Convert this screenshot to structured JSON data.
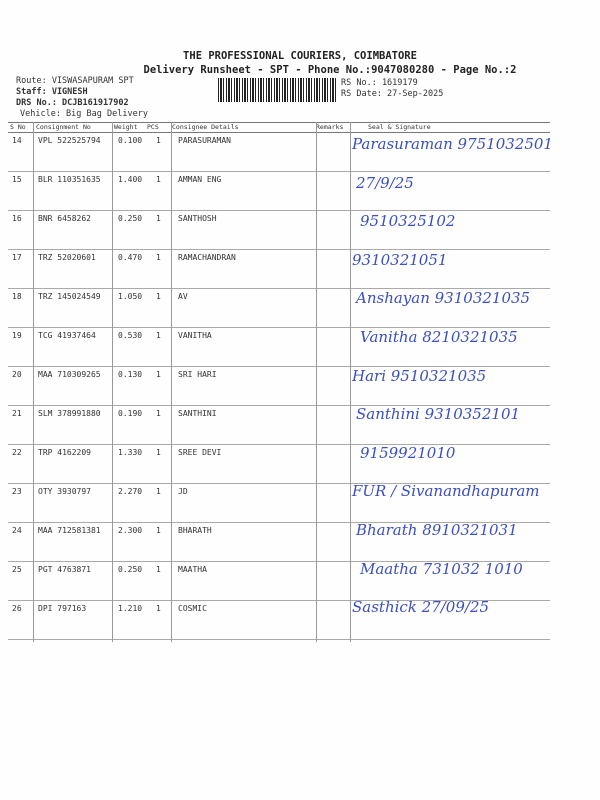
{
  "header": {
    "company": "THE PROFESSIONAL COURIERS, COIMBATORE",
    "subtitle": "Delivery Runsheet - SPT - Phone No.:9047080280 - Page No.:2",
    "route": "Route: VISWASAPURAM SPT",
    "staff": "Staff: VIGNESH",
    "drs": "DRS No.: DCJB161917902",
    "vehicle": "Vehicle: Big Bag Delivery",
    "rs_no": "RS No.: 1619179",
    "rs_date": "RS Date: 27-Sep-2025"
  },
  "columns": [
    "S No",
    "Consignment No",
    "Weight",
    "PCS",
    "Consignee Details",
    "Remarks",
    "Seal & Signature"
  ],
  "rows": [
    {
      "sno": "14",
      "cno": "VPL 522525794",
      "weight": "0.100",
      "pcs": "1",
      "consignee": "PARASURAMAN",
      "signature": "Parasuraman 9751032501"
    },
    {
      "sno": "15",
      "cno": "BLR 110351635",
      "weight": "1.400",
      "pcs": "1",
      "consignee": "AMMAN ENG",
      "signature": "27/9/25"
    },
    {
      "sno": "16",
      "cno": "BNR 6458262",
      "weight": "0.250",
      "pcs": "1",
      "consignee": "SANTHOSH",
      "signature": "9510325102"
    },
    {
      "sno": "17",
      "cno": "TRZ 52020601",
      "weight": "0.470",
      "pcs": "1",
      "consignee": "RAMACHANDRAN",
      "signature": "9310321051"
    },
    {
      "sno": "18",
      "cno": "TRZ 145024549",
      "weight": "1.050",
      "pcs": "1",
      "consignee": "AV",
      "signature": "Anshayan 9310321035"
    },
    {
      "sno": "19",
      "cno": "TCG 41937464",
      "weight": "0.530",
      "pcs": "1",
      "consignee": "VANITHA",
      "signature": "Vanitha 8210321035"
    },
    {
      "sno": "20",
      "cno": "MAA 710309265",
      "weight": "0.130",
      "pcs": "1",
      "consignee": "SRI HARI",
      "signature": "Hari 9510321035"
    },
    {
      "sno": "21",
      "cno": "SLM 378991880",
      "weight": "0.190",
      "pcs": "1",
      "consignee": "SANTHINI",
      "signature": "Santhini 9310352101"
    },
    {
      "sno": "22",
      "cno": "TRP 4162209",
      "weight": "1.330",
      "pcs": "1",
      "consignee": "SREE DEVI",
      "signature": "9159921010"
    },
    {
      "sno": "23",
      "cno": "OTY 3930797",
      "weight": "2.270",
      "pcs": "1",
      "consignee": "JD",
      "signature": "FUR / Sivanandhapuram"
    },
    {
      "sno": "24",
      "cno": "MAA 712581381",
      "weight": "2.300",
      "pcs": "1",
      "consignee": "BHARATH",
      "signature": "Bharath 8910321031"
    },
    {
      "sno": "25",
      "cno": "PGT 4763871",
      "weight": "0.250",
      "pcs": "1",
      "consignee": "MAATHA",
      "signature": "Maatha 731032 1010"
    },
    {
      "sno": "26",
      "cno": "DPI 797163",
      "weight": "1.210",
      "pcs": "1",
      "consignee": "COSMIC",
      "signature": "Sasthick 27/09/25"
    }
  ]
}
